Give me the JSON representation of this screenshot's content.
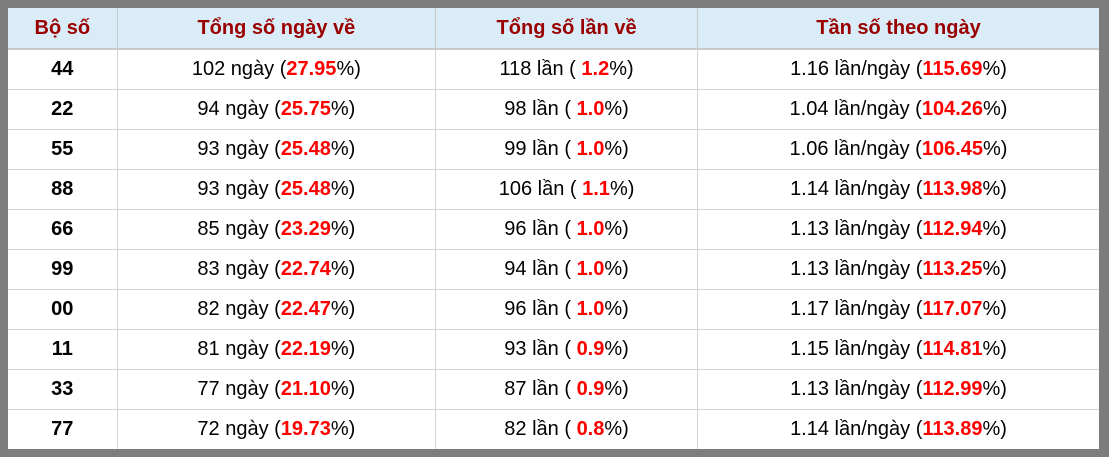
{
  "accent_colors": {
    "header_bg": "#d9ecf7",
    "header_text": "#9a0000",
    "highlight_red": "#ff0000",
    "frame_gray": "#7d7d7d"
  },
  "table": {
    "columns": [
      {
        "label": "Bộ số"
      },
      {
        "label": "Tổng số ngày về"
      },
      {
        "label": "Tổng số lần về"
      },
      {
        "label": "Tần số theo ngày"
      }
    ],
    "rows": [
      {
        "pair": "44",
        "days": {
          "prefix": "102 ngày (",
          "value": "27.95",
          "suffix": "%)"
        },
        "times": {
          "prefix": "118 lần ( ",
          "value": "1.2",
          "suffix": "%)"
        },
        "freq": {
          "prefix": "1.16 lần/ngày (",
          "value": "115.69",
          "suffix": "%)"
        }
      },
      {
        "pair": "22",
        "days": {
          "prefix": "94 ngày (",
          "value": "25.75",
          "suffix": "%)"
        },
        "times": {
          "prefix": "98 lần ( ",
          "value": "1.0",
          "suffix": "%)"
        },
        "freq": {
          "prefix": "1.04 lần/ngày (",
          "value": "104.26",
          "suffix": "%)"
        }
      },
      {
        "pair": "55",
        "days": {
          "prefix": "93 ngày (",
          "value": "25.48",
          "suffix": "%)"
        },
        "times": {
          "prefix": "99 lần ( ",
          "value": "1.0",
          "suffix": "%)"
        },
        "freq": {
          "prefix": "1.06 lần/ngày (",
          "value": "106.45",
          "suffix": "%)"
        }
      },
      {
        "pair": "88",
        "days": {
          "prefix": "93 ngày (",
          "value": "25.48",
          "suffix": "%)"
        },
        "times": {
          "prefix": "106 lần ( ",
          "value": "1.1",
          "suffix": "%)"
        },
        "freq": {
          "prefix": "1.14 lần/ngày (",
          "value": "113.98",
          "suffix": "%)"
        }
      },
      {
        "pair": "66",
        "days": {
          "prefix": "85 ngày (",
          "value": "23.29",
          "suffix": "%)"
        },
        "times": {
          "prefix": "96 lần ( ",
          "value": "1.0",
          "suffix": "%)"
        },
        "freq": {
          "prefix": "1.13 lần/ngày (",
          "value": "112.94",
          "suffix": "%)"
        }
      },
      {
        "pair": "99",
        "days": {
          "prefix": "83 ngày (",
          "value": "22.74",
          "suffix": "%)"
        },
        "times": {
          "prefix": "94 lần ( ",
          "value": "1.0",
          "suffix": "%)"
        },
        "freq": {
          "prefix": "1.13 lần/ngày (",
          "value": "113.25",
          "suffix": "%)"
        }
      },
      {
        "pair": "00",
        "days": {
          "prefix": "82 ngày (",
          "value": "22.47",
          "suffix": "%)"
        },
        "times": {
          "prefix": "96 lần ( ",
          "value": "1.0",
          "suffix": "%)"
        },
        "freq": {
          "prefix": "1.17 lần/ngày (",
          "value": "117.07",
          "suffix": "%)"
        }
      },
      {
        "pair": "11",
        "days": {
          "prefix": "81 ngày (",
          "value": "22.19",
          "suffix": "%)"
        },
        "times": {
          "prefix": "93 lần ( ",
          "value": "0.9",
          "suffix": "%)"
        },
        "freq": {
          "prefix": "1.15 lần/ngày (",
          "value": "114.81",
          "suffix": "%)"
        }
      },
      {
        "pair": "33",
        "days": {
          "prefix": "77 ngày (",
          "value": "21.10",
          "suffix": "%)"
        },
        "times": {
          "prefix": "87 lần ( ",
          "value": "0.9",
          "suffix": "%)"
        },
        "freq": {
          "prefix": "1.13 lần/ngày (",
          "value": "112.99",
          "suffix": "%)"
        }
      },
      {
        "pair": "77",
        "days": {
          "prefix": "72 ngày (",
          "value": "19.73",
          "suffix": "%)"
        },
        "times": {
          "prefix": "82 lần ( ",
          "value": "0.8",
          "suffix": "%)"
        },
        "freq": {
          "prefix": "1.14 lần/ngày (",
          "value": "113.89",
          "suffix": "%)"
        }
      }
    ]
  }
}
